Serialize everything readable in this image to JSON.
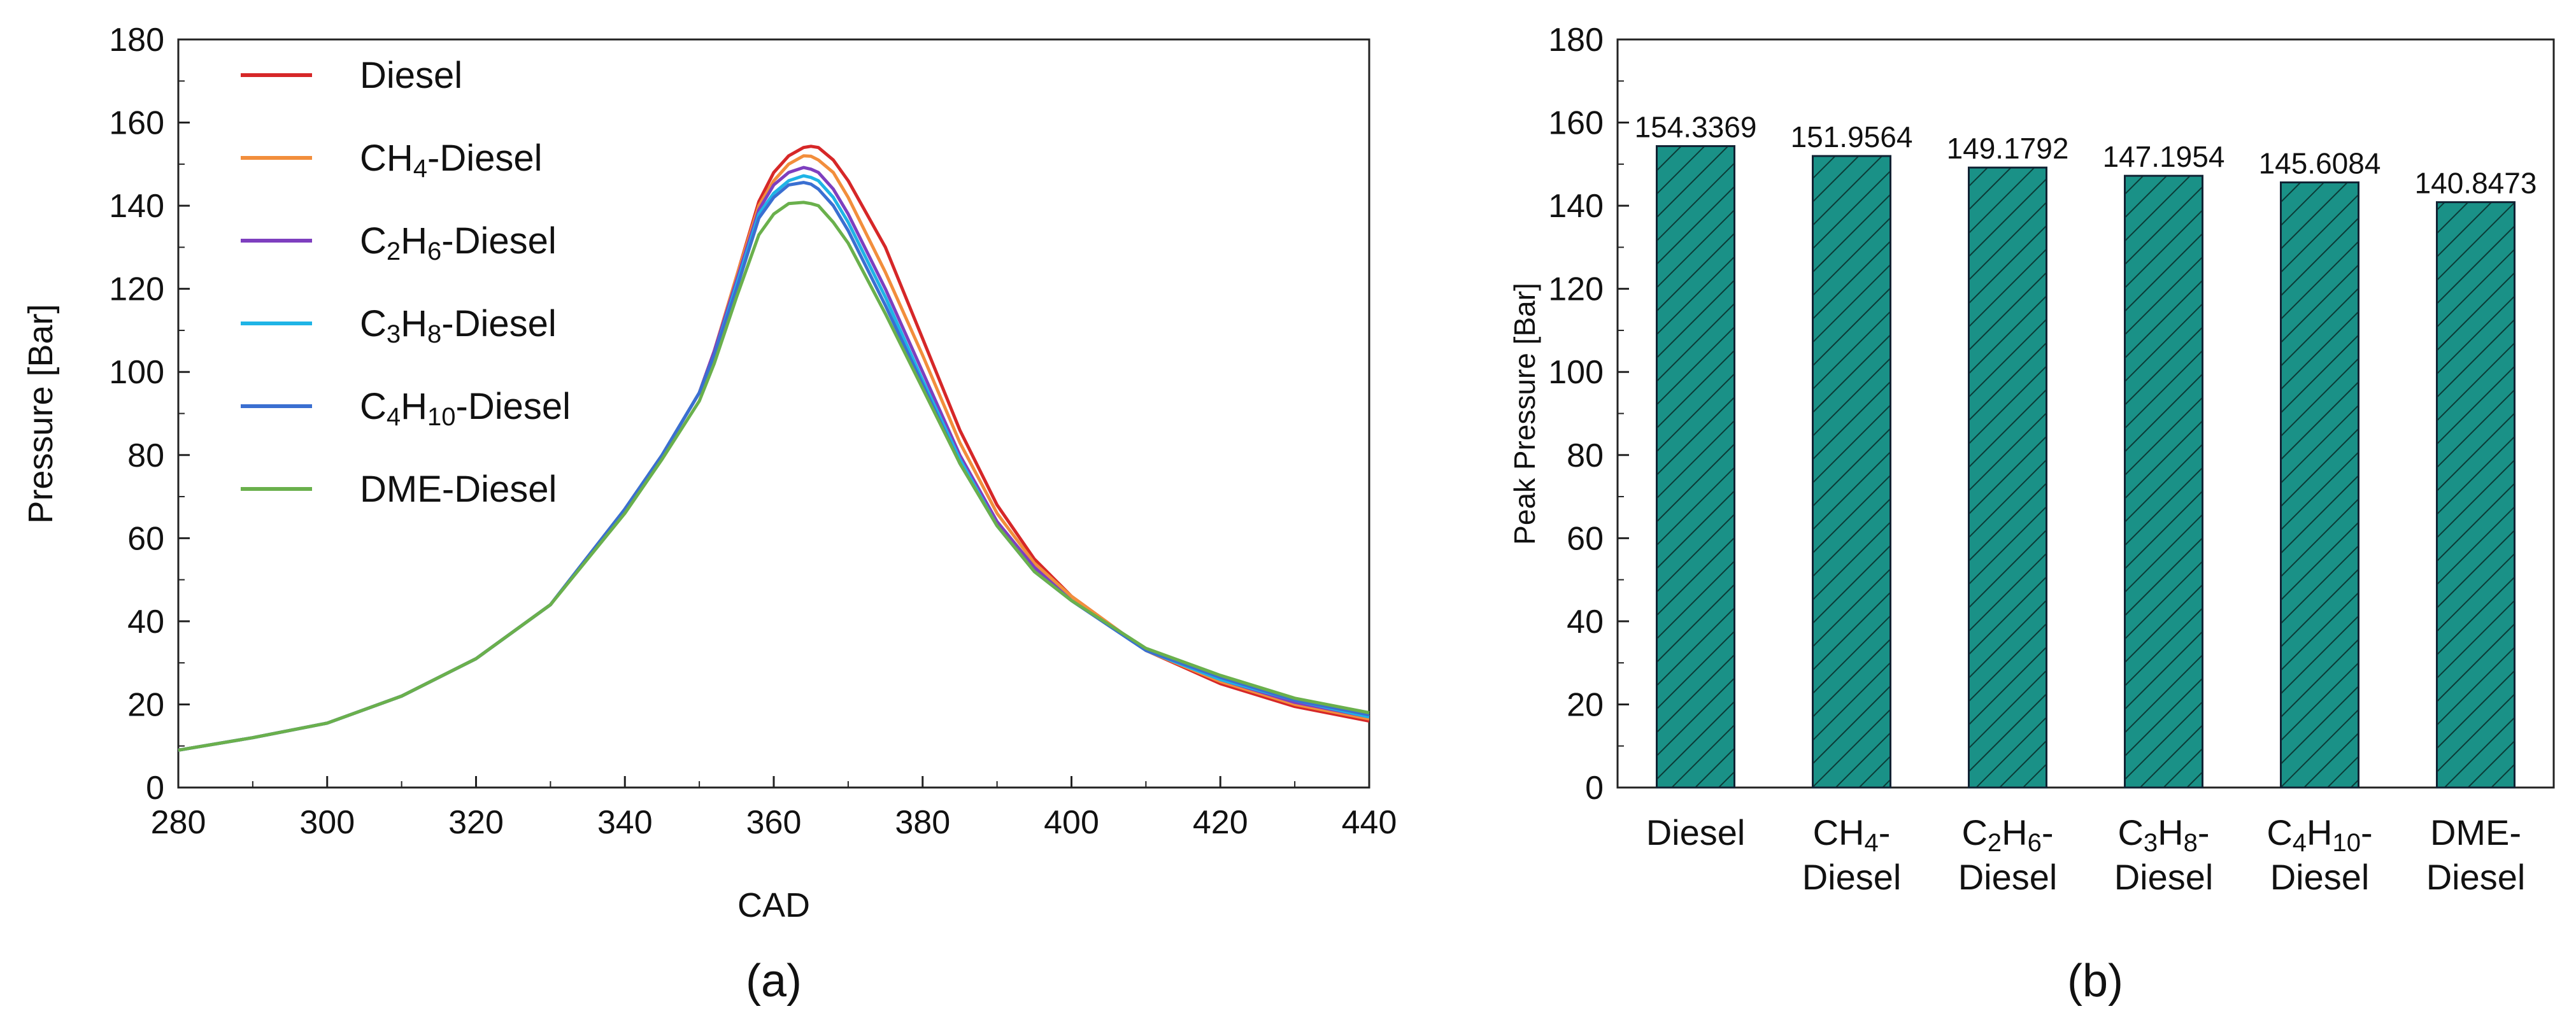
{
  "chart_data": [
    {
      "type": "line",
      "caption": "(a)",
      "xlabel": "CAD",
      "ylabel": "Pressure [Bar]",
      "xlim": [
        280,
        440
      ],
      "ylim": [
        0,
        180
      ],
      "xticks": [
        "280",
        "300",
        "320",
        "340",
        "360",
        "380",
        "400",
        "420",
        "440"
      ],
      "yticks": [
        "0",
        "20",
        "40",
        "60",
        "80",
        "100",
        "120",
        "140",
        "160",
        "180"
      ],
      "legend_position": "top-left",
      "x": [
        280,
        290,
        300,
        310,
        320,
        330,
        340,
        345,
        350,
        352,
        355,
        358,
        360,
        362,
        364,
        365,
        366,
        368,
        370,
        375,
        380,
        385,
        390,
        395,
        400,
        410,
        420,
        430,
        440
      ],
      "series": [
        {
          "name": "Diesel",
          "label": {
            "base": "Diesel"
          },
          "color": "#d62728",
          "values": [
            9,
            12,
            15.5,
            22,
            31,
            44,
            67,
            80,
            95,
            105,
            123,
            141,
            148,
            152,
            154,
            154.3,
            154,
            151,
            146,
            130,
            108,
            86,
            68,
            55,
            46,
            33,
            25,
            19.5,
            16
          ]
        },
        {
          "name": "CH4-Diesel",
          "label": {
            "base": "CH",
            "sub1": "4",
            "rest": "-Diesel"
          },
          "color": "#f28e3c",
          "values": [
            9,
            12,
            15.5,
            22,
            31,
            44,
            67,
            80,
            95,
            105,
            123,
            140,
            146,
            150,
            152,
            151.9,
            151,
            148,
            142,
            124,
            104,
            83,
            66,
            54,
            46,
            33,
            25.5,
            20,
            16.5
          ]
        },
        {
          "name": "C2H6-Diesel",
          "label": {
            "base": "C",
            "sub1": "2",
            "mid": "H",
            "sub2": "6",
            "rest": "-Diesel"
          },
          "color": "#7e3fbf",
          "values": [
            9,
            12,
            15.5,
            22,
            31,
            44,
            67,
            80,
            95,
            105,
            122,
            139,
            145,
            148,
            149.2,
            148.8,
            148,
            144,
            138,
            120,
            100,
            80,
            64,
            53,
            45,
            33,
            26,
            20.5,
            17
          ]
        },
        {
          "name": "C3H8-Diesel",
          "label": {
            "base": "C",
            "sub1": "3",
            "mid": "H",
            "sub2": "8",
            "rest": "-Diesel"
          },
          "color": "#1fb4e6",
          "values": [
            9,
            12,
            15.5,
            22,
            31,
            44,
            67,
            80,
            95,
            104,
            121,
            138,
            143,
            146,
            147.2,
            146.8,
            146,
            142,
            136,
            118,
            98,
            79,
            63,
            52,
            45,
            33,
            26,
            21,
            17
          ]
        },
        {
          "name": "C4H10-Diesel",
          "label": {
            "base": "C",
            "sub1": "4",
            "mid": "H",
            "sub2": "10",
            "rest": "-Diesel"
          },
          "color": "#3a6fd1",
          "values": [
            9,
            12,
            15.5,
            22,
            31,
            44,
            67,
            80,
            95,
            104,
            120,
            137,
            142,
            145,
            145.6,
            145.2,
            144,
            140,
            134,
            116,
            97,
            78,
            63,
            52,
            45,
            33,
            26.5,
            21,
            17.5
          ]
        },
        {
          "name": "DME-Diesel",
          "label": {
            "base": "DME-Diesel"
          },
          "color": "#6ab04c",
          "values": [
            9,
            12,
            15.5,
            22,
            31,
            44,
            66,
            79,
            93,
            102,
            118,
            133,
            138,
            140.5,
            140.8,
            140.5,
            140,
            136,
            131,
            114,
            96,
            78,
            63,
            52,
            45,
            33.5,
            27,
            21.5,
            18
          ]
        }
      ]
    },
    {
      "type": "bar",
      "caption": "(b)",
      "ylabel": "Peak Pressure [Bar]",
      "ylim": [
        0,
        180
      ],
      "yticks": [
        "0",
        "20",
        "40",
        "60",
        "80",
        "100",
        "120",
        "140",
        "160",
        "180"
      ],
      "bar_color": "#1a9187",
      "hatch": "diagonal",
      "categories": [
        {
          "name": "Diesel",
          "line1": "Diesel"
        },
        {
          "name": "CH4-Diesel",
          "line1": "CH",
          "sub1": "4",
          "line1_end": "-",
          "line2": "Diesel"
        },
        {
          "name": "C2H6-Diesel",
          "line1": "C",
          "sub1": "2",
          "mid": "H",
          "sub2": "6",
          "line1_end": "-",
          "line2": "Diesel"
        },
        {
          "name": "C3H8-Diesel",
          "line1": "C",
          "sub1": "3",
          "mid": "H",
          "sub2": "8",
          "line1_end": "-",
          "line2": "Diesel"
        },
        {
          "name": "C4H10-Diesel",
          "line1": "C",
          "sub1": "4",
          "mid": "H",
          "sub2": "10",
          "line1_end": "-",
          "line2": "Diesel"
        },
        {
          "name": "DME-Diesel",
          "line1": "DME-",
          "line2": "Diesel"
        }
      ],
      "values": [
        154.3369,
        151.9564,
        149.1792,
        147.1954,
        145.6084,
        140.8473
      ],
      "data_labels": [
        "154.3369",
        "151.9564",
        "149.1792",
        "147.1954",
        "145.6084",
        "140.8473"
      ]
    }
  ]
}
